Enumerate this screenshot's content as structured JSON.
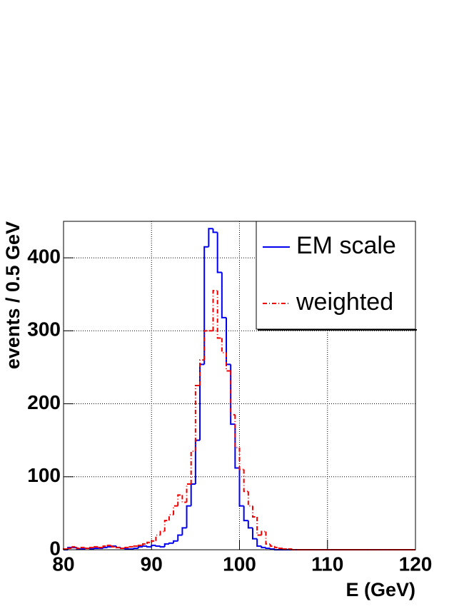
{
  "chart_data": {
    "type": "histogram",
    "x_label": "E (GeV)",
    "y_label": "events / 0.5 GeV",
    "bins": [
      80,
      80.5,
      81,
      81.5,
      82,
      82.5,
      83,
      83.5,
      84,
      84.5,
      85,
      85.5,
      86,
      86.5,
      87,
      87.5,
      88,
      88.5,
      89,
      89.5,
      90,
      90.5,
      91,
      91.5,
      92,
      92.5,
      93,
      93.5,
      94,
      94.5,
      95,
      95.5,
      96,
      96.5,
      97,
      97.5,
      98,
      98.5,
      99,
      99.5,
      100,
      100.5,
      101,
      101.5,
      102,
      102.5,
      103,
      103.5,
      104,
      104.5,
      105,
      105.5,
      106,
      106.5,
      107,
      107.5,
      108,
      108.5,
      109,
      109.5,
      110,
      110.5,
      111,
      111.5,
      112,
      112.5,
      113,
      113.5,
      114,
      114.5,
      115,
      115.5,
      116,
      116.5,
      117,
      117.5,
      118,
      118.5,
      119,
      119.5,
      120
    ],
    "series": [
      {
        "name": "EM scale",
        "color": "#0000ee",
        "style": "solid",
        "values": [
          0,
          3,
          3,
          1,
          1,
          2,
          1,
          2,
          2,
          3,
          4,
          5,
          3,
          2,
          1,
          1,
          2,
          4,
          5,
          4,
          6,
          5,
          4,
          8,
          9,
          12,
          20,
          30,
          60,
          90,
          150,
          254,
          415,
          440,
          435,
          380,
          318,
          254,
          172,
          112,
          60,
          40,
          30,
          15,
          5,
          3,
          2,
          1,
          0,
          0,
          0,
          0,
          0,
          0,
          0,
          0,
          0,
          0,
          0,
          0,
          0,
          0,
          0,
          0,
          0,
          0,
          0,
          0,
          0,
          0,
          0,
          0,
          0,
          0,
          0,
          0,
          0,
          0,
          0,
          0
        ]
      },
      {
        "name": "weighted",
        "color": "#ee0000",
        "style": "dashdot",
        "values": [
          1,
          2,
          4,
          2,
          3,
          2,
          3,
          4,
          3,
          5,
          6,
          4,
          3,
          2,
          3,
          4,
          5,
          6,
          8,
          10,
          12,
          20,
          25,
          40,
          48,
          60,
          75,
          65,
          90,
          135,
          225,
          260,
          300,
          300,
          355,
          290,
          270,
          245,
          185,
          140,
          110,
          80,
          60,
          45,
          20,
          25,
          8,
          5,
          3,
          2,
          1,
          1,
          0,
          0,
          0,
          0,
          0,
          0,
          0,
          0,
          0,
          0,
          0,
          0,
          0,
          0,
          0,
          0,
          0,
          0,
          0,
          0,
          0,
          0,
          0,
          0,
          0,
          0,
          0,
          0
        ]
      }
    ],
    "xlim": [
      80,
      120
    ],
    "ylim": [
      0,
      450
    ],
    "xticks": [
      80,
      90,
      100,
      110,
      120
    ],
    "yticks": [
      0,
      100,
      200,
      300,
      400
    ],
    "grid": true,
    "legend": "top-right"
  }
}
